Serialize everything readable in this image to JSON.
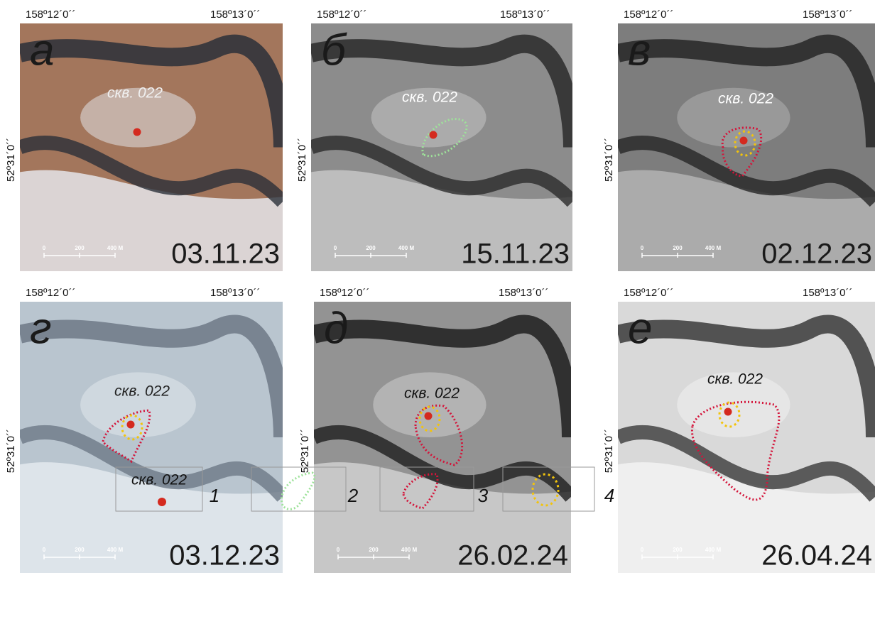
{
  "panels": [
    {
      "letter": "а",
      "date": "03.11.23",
      "well": "скв. 022",
      "lon_left": "158º12´0´´",
      "lon_right": "158º13´0´´",
      "lat": "52º31´0´´",
      "scale": [
        "0",
        "200",
        "400 М"
      ]
    },
    {
      "letter": "б",
      "date": "15.11.23",
      "well": "скв. 022",
      "lon_left": "158º12´0´´",
      "lon_right": "158º13´0´´",
      "lat": "52º31´0´´",
      "scale": [
        "0",
        "200",
        "400 М"
      ]
    },
    {
      "letter": "в",
      "date": "02.12.23",
      "well": "скв. 022",
      "lon_left": "158º12´0´´",
      "lon_right": "158º13´0´´",
      "lat": "52º31´0´´",
      "scale": [
        "0",
        "200",
        "400 М"
      ]
    },
    {
      "letter": "г",
      "date": "03.12.23",
      "well": "скв. 022",
      "lon_left": "158º12´0´´",
      "lon_right": "158º13´0´´",
      "lat": "52º31´0´´",
      "scale": [
        "0",
        "200",
        "400 М"
      ]
    },
    {
      "letter": "д",
      "date": "26.02.24",
      "well": "скв. 022",
      "lon_left": "158º12´0´´",
      "lon_right": "158º13´0´´",
      "lat": "52º31´0´´",
      "scale": [
        "0",
        "200",
        "400 М"
      ]
    },
    {
      "letter": "е",
      "date": "26.04.24",
      "well": "скв. 022",
      "lon_left": "158º12´0´´",
      "lon_right": "158º13´0´´",
      "lat": "52º31´0´´",
      "scale": [
        "0",
        "200",
        "400 М"
      ]
    }
  ],
  "legend": [
    {
      "label": "скв. 022",
      "number": "1"
    },
    {
      "number": "2"
    },
    {
      "number": "3"
    },
    {
      "number": "4"
    }
  ]
}
